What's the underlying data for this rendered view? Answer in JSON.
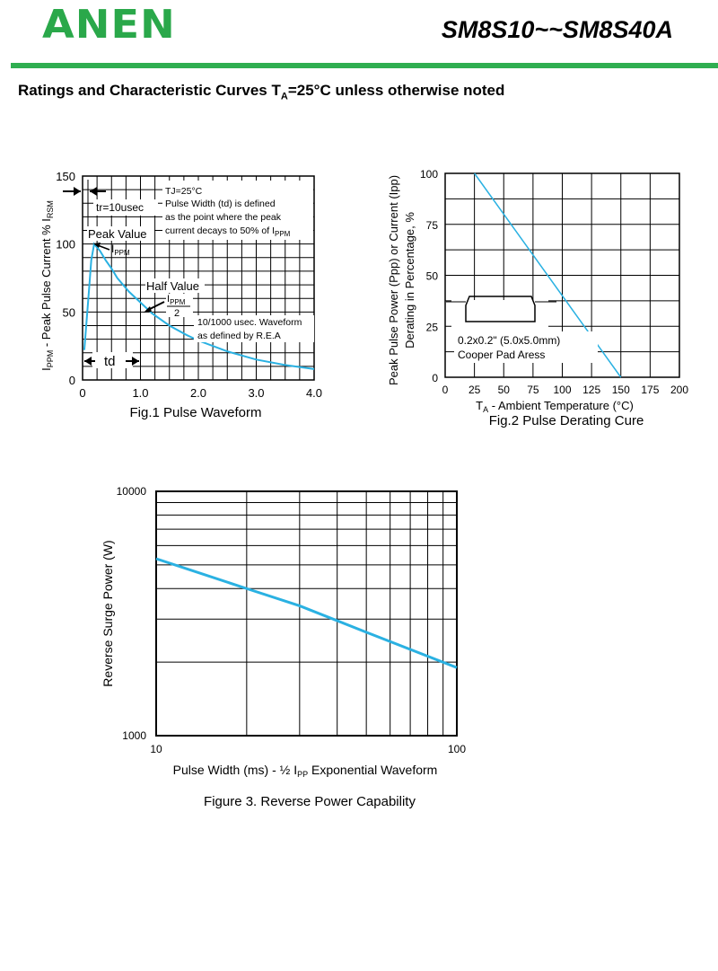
{
  "header": {
    "logo": "ANEN",
    "part_number": "SM8S10~~SM8S40A",
    "heading_main": "Ratings and Characteristic Curves T",
    "heading_sub": "A",
    "heading_tail": "=25°C unless otherwise noted"
  },
  "colors": {
    "curve": "#2ab1e2",
    "brand_green": "#2fae50",
    "logo_green": "#2aa84a"
  },
  "chart_data": [
    {
      "type": "line",
      "title": "Fig.1 Pulse Waveform",
      "ylabel_parts": [
        "I",
        "PPM",
        " - Peak Pulse Current % I",
        "RSM"
      ],
      "x_ticks": [
        "0",
        "1.0",
        "2.0",
        "3.0",
        "4.0"
      ],
      "y_ticks": [
        "0",
        "50",
        "100",
        "150"
      ],
      "xlim": [
        0,
        4.0
      ],
      "ylim": [
        0,
        150
      ],
      "grid": true,
      "series": [
        {
          "x": [
            0.03,
            0.1,
            0.15,
            0.2,
            0.3,
            0.4,
            0.5,
            0.6,
            0.8,
            1.0,
            1.2,
            1.5,
            1.8,
            2.0,
            2.5,
            3.0,
            3.5,
            4.0
          ],
          "values": [
            22,
            60,
            88,
            100,
            95,
            88,
            82,
            75,
            65,
            57,
            49,
            40,
            33,
            29,
            21,
            15,
            11,
            8
          ]
        }
      ],
      "annotations": {
        "tr": "tr=10usec",
        "tj": "TJ=25°C",
        "pw1": "Pulse Width (td) is defined",
        "pw2": "as the point where the peak",
        "pw3": "current decays to 50% of I",
        "pw3_sub": "PPM",
        "peak": "Peak Value",
        "peak_sym": "I",
        "peak_sym_sub": "PPM",
        "half": "Half Value",
        "half_sym": "I",
        "half_sym_sub": "PPM",
        "half_den": "2",
        "std1": "10/1000 usec. Waveform",
        "std2": "as defined by R.E.A",
        "td": "td"
      }
    },
    {
      "type": "line",
      "title": "Fig.2 Pulse Derating Cure",
      "ylabel_line1": "Peak Pulse Power (Ppp) or Current (Ipp)",
      "ylabel_line2": "Derating in Percentage, %",
      "xlabel_parts": [
        "T",
        "A",
        " - Ambient Temperature (°C)"
      ],
      "x_ticks": [
        "0",
        "25",
        "50",
        "75",
        "100",
        "125",
        "150",
        "175",
        "200"
      ],
      "y_ticks": [
        "0",
        "25",
        "50",
        "75",
        "100"
      ],
      "xlim": [
        0,
        200
      ],
      "ylim": [
        0,
        100
      ],
      "grid": true,
      "series": [
        {
          "x": [
            25,
            150
          ],
          "values": [
            100,
            0
          ]
        }
      ],
      "annotations": {
        "pad1": "0.2x0.2\" (5.0x5.0mm)",
        "pad2": "Cooper Pad Aress"
      }
    },
    {
      "type": "line",
      "title": "Figure 3. Reverse Power Capability",
      "ylabel": "Reverse Surge Power (W)",
      "xlabel_parts": [
        "Pulse Width (ms) - ½ I",
        "PP",
        " Exponential Waveform"
      ],
      "x_ticks": [
        "10",
        "100"
      ],
      "y_ticks": [
        "1000",
        "10000"
      ],
      "x_scale": "log",
      "y_scale": "log",
      "xlim": [
        10,
        100
      ],
      "ylim": [
        1000,
        10000
      ],
      "grid": true,
      "series": [
        {
          "x": [
            10,
            20,
            30,
            50,
            100
          ],
          "values": [
            5300,
            4000,
            3400,
            2650,
            1900
          ]
        }
      ]
    }
  ]
}
